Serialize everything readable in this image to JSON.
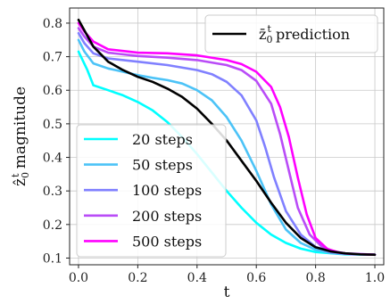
{
  "chart_data": {
    "type": "line",
    "xlabel": "t",
    "ylabel": "ẑ0t magnitude",
    "ylabel_parts": {
      "base": "ẑ",
      "sub": "0",
      "sup": "t",
      "rest": " magnitude"
    },
    "xlim": [
      -0.03,
      1.03
    ],
    "ylim": [
      0.08,
      0.845
    ],
    "xticks": [
      0.0,
      0.2,
      0.4,
      0.6,
      0.8,
      1.0
    ],
    "xtick_labels": [
      "0.0",
      "0.2",
      "0.4",
      "0.6",
      "0.8",
      "1.0"
    ],
    "yticks": [
      0.1,
      0.2,
      0.3,
      0.4,
      0.5,
      0.6,
      0.7,
      0.8
    ],
    "ytick_labels": [
      "0.1",
      "0.2",
      "0.3",
      "0.4",
      "0.5",
      "0.6",
      "0.7",
      "0.8"
    ],
    "grid": true,
    "legends": [
      {
        "placement": "upper-right",
        "entries": [
          0
        ]
      },
      {
        "placement": "lower-left",
        "entries": [
          1,
          2,
          3,
          4,
          5
        ]
      }
    ],
    "series": [
      {
        "name": "z̄0t prediction",
        "name_parts": {
          "base": "z̄",
          "sub": "0",
          "sup": "t",
          "rest": " prediction"
        },
        "color": "#000000",
        "x": [
          0.0,
          0.025,
          0.05,
          0.1,
          0.15,
          0.2,
          0.25,
          0.3,
          0.35,
          0.4,
          0.45,
          0.5,
          0.55,
          0.6,
          0.65,
          0.7,
          0.75,
          0.8,
          0.85,
          0.9,
          0.95,
          1.0
        ],
        "y": [
          0.81,
          0.77,
          0.73,
          0.685,
          0.66,
          0.64,
          0.625,
          0.605,
          0.58,
          0.545,
          0.5,
          0.45,
          0.39,
          0.33,
          0.265,
          0.205,
          0.16,
          0.132,
          0.12,
          0.114,
          0.111,
          0.11
        ]
      },
      {
        "name": "20 steps",
        "color": "#00ffff",
        "x": [
          0.0,
          0.03,
          0.05,
          0.1,
          0.15,
          0.2,
          0.25,
          0.3,
          0.35,
          0.4,
          0.45,
          0.5,
          0.55,
          0.6,
          0.65,
          0.7,
          0.75,
          0.8,
          0.9,
          1.0
        ],
        "y": [
          0.715,
          0.66,
          0.615,
          0.6,
          0.585,
          0.565,
          0.54,
          0.505,
          0.46,
          0.41,
          0.355,
          0.3,
          0.25,
          0.205,
          0.17,
          0.145,
          0.128,
          0.118,
          0.111,
          0.11
        ]
      },
      {
        "name": "50 steps",
        "color": "#4cc3f7",
        "x": [
          0.0,
          0.02,
          0.05,
          0.1,
          0.15,
          0.2,
          0.25,
          0.3,
          0.35,
          0.4,
          0.45,
          0.5,
          0.55,
          0.6,
          0.65,
          0.7,
          0.75,
          0.8,
          0.85,
          0.9,
          1.0
        ],
        "y": [
          0.75,
          0.715,
          0.68,
          0.665,
          0.655,
          0.645,
          0.637,
          0.63,
          0.62,
          0.6,
          0.57,
          0.52,
          0.45,
          0.36,
          0.26,
          0.185,
          0.145,
          0.125,
          0.115,
          0.112,
          0.11
        ]
      },
      {
        "name": "100 steps",
        "color": "#8080ff",
        "x": [
          0.0,
          0.02,
          0.05,
          0.1,
          0.2,
          0.3,
          0.4,
          0.45,
          0.5,
          0.55,
          0.6,
          0.63,
          0.66,
          0.7,
          0.75,
          0.8,
          0.85,
          0.9,
          1.0
        ],
        "y": [
          0.77,
          0.74,
          0.71,
          0.695,
          0.685,
          0.675,
          0.66,
          0.648,
          0.625,
          0.585,
          0.51,
          0.43,
          0.34,
          0.24,
          0.17,
          0.133,
          0.118,
          0.113,
          0.11
        ]
      },
      {
        "name": "200 steps",
        "color": "#b94cf7",
        "x": [
          0.0,
          0.02,
          0.05,
          0.1,
          0.2,
          0.3,
          0.4,
          0.5,
          0.55,
          0.6,
          0.65,
          0.68,
          0.71,
          0.74,
          0.78,
          0.82,
          0.86,
          0.9,
          1.0
        ],
        "y": [
          0.785,
          0.76,
          0.73,
          0.712,
          0.702,
          0.697,
          0.69,
          0.675,
          0.66,
          0.628,
          0.56,
          0.47,
          0.36,
          0.25,
          0.17,
          0.135,
          0.12,
          0.114,
          0.11
        ]
      },
      {
        "name": "500 steps",
        "color": "#ff00ff",
        "x": [
          0.0,
          0.02,
          0.05,
          0.1,
          0.2,
          0.3,
          0.4,
          0.5,
          0.55,
          0.6,
          0.65,
          0.68,
          0.71,
          0.74,
          0.77,
          0.8,
          0.84,
          0.88,
          0.92,
          1.0
        ],
        "y": [
          0.8,
          0.775,
          0.745,
          0.722,
          0.712,
          0.71,
          0.704,
          0.69,
          0.678,
          0.655,
          0.61,
          0.55,
          0.46,
          0.34,
          0.23,
          0.16,
          0.127,
          0.116,
          0.112,
          0.11
        ]
      }
    ]
  }
}
